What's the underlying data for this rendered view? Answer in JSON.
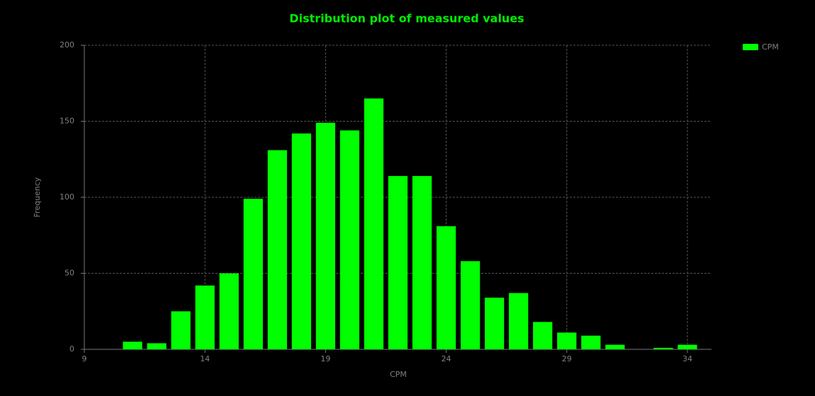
{
  "chart_data": {
    "type": "bar",
    "title": "Distribution plot of measured values",
    "x_label": "CPM",
    "y_label": "Frequency",
    "x": [
      11,
      12,
      13,
      14,
      15,
      16,
      17,
      18,
      19,
      20,
      21,
      22,
      23,
      24,
      25,
      26,
      27,
      28,
      29,
      30,
      31,
      32,
      33,
      34
    ],
    "series": [
      {
        "name": "CPM",
        "color": "#00ff00",
        "values": [
          5,
          4,
          25,
          42,
          50,
          99,
          131,
          142,
          149,
          144,
          165,
          114,
          114,
          81,
          58,
          34,
          37,
          18,
          11,
          9,
          3,
          0,
          1,
          3
        ]
      }
    ],
    "xlim": [
      9,
      35
    ],
    "xticks": [
      9,
      14,
      19,
      24,
      29,
      34
    ],
    "ylim": [
      0,
      200
    ],
    "yticks": [
      0,
      50,
      100,
      150,
      200
    ],
    "grid": true,
    "legend": "top-right"
  }
}
